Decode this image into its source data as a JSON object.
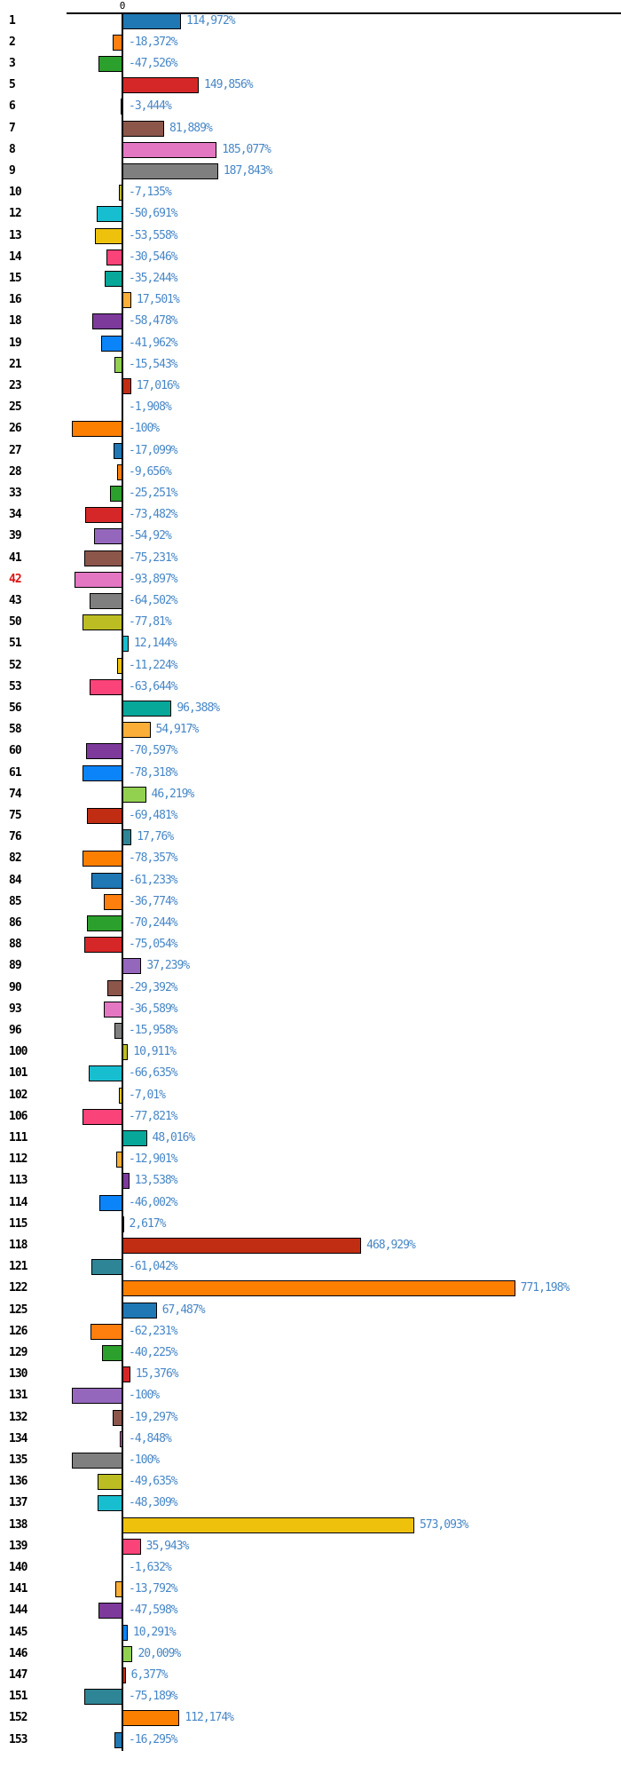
{
  "page": {
    "background": "#ffffff",
    "zero_tick_label": "0"
  },
  "axis": {
    "zero_tick_label": "0",
    "axis_line_color": "#000000",
    "value_label_color": "#4787c7",
    "row_label_color": "#000000",
    "highlight_label_color": "#dd1111"
  },
  "chart_data": {
    "type": "bar",
    "orientation": "horizontal",
    "unit": "%",
    "decimal_separator": ",",
    "title": "",
    "xlabel": "",
    "ylabel": "",
    "xlim": [
      -110,
      980
    ],
    "grid": false,
    "legend": "none",
    "zero_line": true,
    "highlighted_categories": [
      "42"
    ],
    "palette": [
      "#1f77b4",
      "#ff7f0e",
      "#2ca02c",
      "#d62728",
      "#9467bd",
      "#8c564b",
      "#e377c2",
      "#7f7f7f",
      "#bcbd22",
      "#17becf",
      "#eec20c",
      "#fa4379",
      "#07a79a",
      "#fbae38",
      "#7d3a9b",
      "#0b84fa",
      "#92d050",
      "#c02d13",
      "#2e8595",
      "#fd7f00"
    ],
    "categories": [
      "1",
      "2",
      "3",
      "5",
      "6",
      "7",
      "8",
      "9",
      "10",
      "12",
      "13",
      "14",
      "15",
      "16",
      "18",
      "19",
      "21",
      "23",
      "25",
      "26",
      "27",
      "28",
      "33",
      "34",
      "39",
      "41",
      "42",
      "43",
      "50",
      "51",
      "52",
      "53",
      "56",
      "58",
      "60",
      "61",
      "74",
      "75",
      "76",
      "82",
      "84",
      "85",
      "86",
      "88",
      "89",
      "90",
      "93",
      "96",
      "100",
      "101",
      "102",
      "106",
      "111",
      "112",
      "113",
      "114",
      "115",
      "118",
      "121",
      "122",
      "125",
      "126",
      "129",
      "130",
      "131",
      "132",
      "134",
      "135",
      "136",
      "137",
      "138",
      "139",
      "140",
      "141",
      "144",
      "145",
      "146",
      "147",
      "151",
      "152",
      "153"
    ],
    "values": [
      114.972,
      -18.372,
      -47.526,
      149.856,
      -3.444,
      81.889,
      185.077,
      187.843,
      -7.135,
      -50.691,
      -53.558,
      -30.546,
      -35.244,
      17.501,
      -58.478,
      -41.962,
      -15.543,
      17.016,
      -1.908,
      -100,
      -17.099,
      -9.656,
      -25.251,
      -73.482,
      -54.92,
      -75.231,
      -93.897,
      -64.502,
      -77.81,
      12.144,
      -11.224,
      -63.644,
      96.388,
      54.917,
      -70.597,
      -78.318,
      46.219,
      -69.481,
      17.76,
      -78.357,
      -61.233,
      -36.774,
      -70.244,
      -75.054,
      37.239,
      -29.392,
      -36.589,
      -15.958,
      10.911,
      -66.635,
      -7.01,
      -77.821,
      48.016,
      -12.901,
      13.538,
      -46.002,
      2.617,
      468.929,
      -61.042,
      771.198,
      67.487,
      -62.231,
      -40.225,
      15.376,
      -100,
      -19.297,
      -4.848,
      -100,
      -49.635,
      -48.309,
      573.093,
      35.943,
      -1.632,
      -13.792,
      -47.598,
      10.291,
      20.009,
      6.377,
      -75.189,
      112.174,
      -16.295
    ],
    "labels": [
      "114,972%",
      "-18,372%",
      "-47,526%",
      "149,856%",
      "-3,444%",
      "81,889%",
      "185,077%",
      "187,843%",
      "-7,135%",
      "-50,691%",
      "-53,558%",
      "-30,546%",
      "-35,244%",
      "17,501%",
      "-58,478%",
      "-41,962%",
      "-15,543%",
      "17,016%",
      "-1,908%",
      "-100%",
      "-17,099%",
      "-9,656%",
      "-25,251%",
      "-73,482%",
      "-54,92%",
      "-75,231%",
      "-93,897%",
      "-64,502%",
      "-77,81%",
      "12,144%",
      "-11,224%",
      "-63,644%",
      "96,388%",
      "54,917%",
      "-70,597%",
      "-78,318%",
      "46,219%",
      "-69,481%",
      "17,76%",
      "-78,357%",
      "-61,233%",
      "-36,774%",
      "-70,244%",
      "-75,054%",
      "37,239%",
      "-29,392%",
      "-36,589%",
      "-15,958%",
      "10,911%",
      "-66,635%",
      "-7,01%",
      "-77,821%",
      "48,016%",
      "-12,901%",
      "13,538%",
      "-46,002%",
      "2,617%",
      "468,929%",
      "-61,042%",
      "771,198%",
      "67,487%",
      "-62,231%",
      "-40,225%",
      "15,376%",
      "-100%",
      "-19,297%",
      "-4,848%",
      "-100%",
      "-49,635%",
      "-48,309%",
      "573,093%",
      "35,943%",
      "-1,632%",
      "-13,792%",
      "-47,598%",
      "10,291%",
      "20,009%",
      "6,377%",
      "-75,189%",
      "112,174%",
      "-16,295%"
    ]
  }
}
